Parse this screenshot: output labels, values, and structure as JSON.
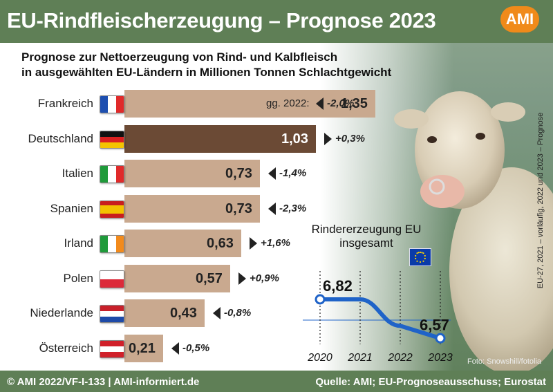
{
  "header": {
    "title": "EU-Rindfleischerzeugung – Prognose 2023",
    "logo": "AMI"
  },
  "subtitle": {
    "line1": "Prognose zur Nettoerzeugung von Rind- und Kalbfleisch",
    "line2": "in ausgewählten EU-Ländern in Millionen Tonnen Schlachtgewicht"
  },
  "vs_label": "gg. 2022:",
  "chart_data": [
    {
      "type": "bar",
      "orientation": "horizontal",
      "title": "Prognose zur Nettoerzeugung von Rind- und Kalbfleisch in ausgewählten EU-Ländern in Millionen Tonnen Schlachtgewicht",
      "categories": [
        "Frankreich",
        "Deutschland",
        "Italien",
        "Spanien",
        "Irland",
        "Polen",
        "Niederlande",
        "Österreich"
      ],
      "values": [
        1.35,
        1.03,
        0.73,
        0.73,
        0.63,
        0.57,
        0.43,
        0.21
      ],
      "value_labels": [
        "1,35",
        "1,03",
        "0,73",
        "0,73",
        "0,63",
        "0,57",
        "0,43",
        "0,21"
      ],
      "change_labels": [
        "-2,0%",
        "+0,3%",
        "-1,4%",
        "-2,3%",
        "+1,6%",
        "+0,9%",
        "-0,8%",
        "-0,5%"
      ],
      "change_directions": [
        "down",
        "up",
        "down",
        "down",
        "up",
        "up",
        "down",
        "down"
      ],
      "highlight_category": "Deutschland",
      "colors": {
        "bar": "#c9a98f",
        "highlight": "#6b4a35"
      }
    },
    {
      "type": "line",
      "title": "Rindererzeugung EU insgesamt",
      "x": [
        "2020",
        "2021",
        "2022",
        "2023"
      ],
      "y": [
        6.82,
        6.82,
        6.65,
        6.57
      ],
      "point_labels": {
        "2020": "6,82",
        "2023": "6,57"
      },
      "color": "#1f63c8"
    }
  ],
  "flags": {
    "Frankreich": {
      "dir": "v",
      "colors": [
        "#1d4fb0",
        "#ffffff",
        "#e02a2a"
      ]
    },
    "Deutschland": {
      "dir": "h",
      "colors": [
        "#111111",
        "#d92020",
        "#f4c400"
      ]
    },
    "Italien": {
      "dir": "v",
      "colors": [
        "#1f9a3a",
        "#ffffff",
        "#e02a2a"
      ]
    },
    "Spanien": {
      "dir": "h",
      "colors": [
        "#c81e1e",
        "#f2c200",
        "#f2c200",
        "#c81e1e"
      ]
    },
    "Irland": {
      "dir": "v",
      "colors": [
        "#1f9a3a",
        "#ffffff",
        "#f28a1c"
      ]
    },
    "Polen": {
      "dir": "h",
      "colors": [
        "#ffffff",
        "#dc2a3a"
      ]
    },
    "Niederlande": {
      "dir": "h",
      "colors": [
        "#c8202a",
        "#ffffff",
        "#1e4aa8"
      ]
    },
    "Österreich": {
      "dir": "h",
      "colors": [
        "#d0202a",
        "#ffffff",
        "#d0202a"
      ]
    }
  },
  "side_note": "EU-27, 2021 – vorläufig, 2022 und 2023 – Prognose",
  "photo_credit": "Foto: Snowshill/fotolia",
  "footer": {
    "left": "© AMI 2022/VF-I-133 | AMI-informiert.de",
    "right": "Quelle: AMI; EU-Prognoseausschuss; Eurostat"
  }
}
